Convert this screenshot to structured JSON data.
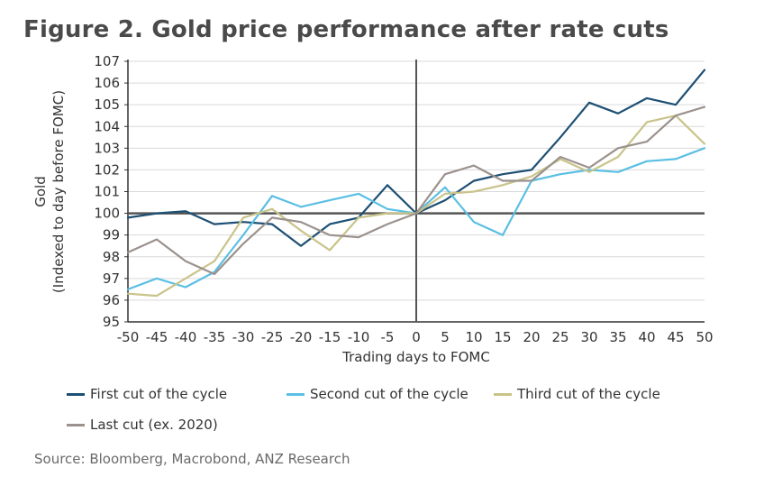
{
  "title": "Figure 2. Gold price performance after rate cuts",
  "source": "Source: Bloomberg, Macrobond, ANZ Research",
  "chart_data": {
    "type": "line",
    "title": "Figure 2. Gold price performance after rate cuts",
    "xlabel": "Trading days to FOMC",
    "ylabel": "Gold",
    "ylabel2": "(Indexed to day before FOMC)",
    "xlim": [
      -50,
      50
    ],
    "ylim": [
      95,
      107
    ],
    "xticks": [
      -50,
      -45,
      -40,
      -35,
      -30,
      -25,
      -20,
      -15,
      -10,
      -5,
      0,
      5,
      10,
      15,
      20,
      25,
      30,
      35,
      40,
      45,
      50
    ],
    "yticks": [
      95,
      96,
      97,
      98,
      99,
      100,
      101,
      102,
      103,
      104,
      105,
      106,
      107
    ],
    "grid": true,
    "legend_position": "bottom",
    "x": [
      -50,
      -45,
      -40,
      -35,
      -30,
      -25,
      -20,
      -15,
      -10,
      -5,
      0,
      5,
      10,
      15,
      20,
      25,
      30,
      35,
      40,
      45,
      50
    ],
    "series": [
      {
        "name": "First cut of the cycle",
        "color": "#1c4f73",
        "values": [
          99.8,
          100.0,
          100.1,
          99.5,
          99.6,
          99.5,
          98.5,
          99.5,
          99.8,
          101.3,
          100.0,
          100.6,
          101.5,
          101.8,
          102.0,
          103.5,
          105.1,
          104.6,
          105.3,
          105.0,
          106.6
        ]
      },
      {
        "name": "Second cut of the cycle",
        "color": "#5bbfe3",
        "values": [
          96.5,
          97.0,
          96.6,
          97.3,
          99.0,
          100.8,
          100.3,
          100.6,
          100.9,
          100.2,
          100.0,
          101.2,
          99.6,
          99.0,
          101.5,
          101.8,
          102.0,
          101.9,
          102.4,
          102.5,
          103.0
        ]
      },
      {
        "name": "Third cut of the cycle",
        "color": "#c9c38a",
        "values": [
          96.3,
          96.2,
          97.0,
          97.8,
          99.8,
          100.2,
          99.2,
          98.3,
          99.8,
          100.0,
          100.0,
          100.9,
          101.0,
          101.3,
          101.7,
          102.5,
          101.9,
          102.6,
          104.2,
          104.5,
          103.2
        ]
      },
      {
        "name": "Last cut (ex. 2020)",
        "color": "#9b918d",
        "values": [
          98.2,
          98.8,
          97.8,
          97.2,
          98.6,
          99.8,
          99.6,
          99.0,
          98.9,
          99.5,
          100.0,
          101.8,
          102.2,
          101.5,
          101.5,
          102.6,
          102.1,
          103.0,
          103.3,
          104.5,
          104.9
        ]
      }
    ]
  }
}
